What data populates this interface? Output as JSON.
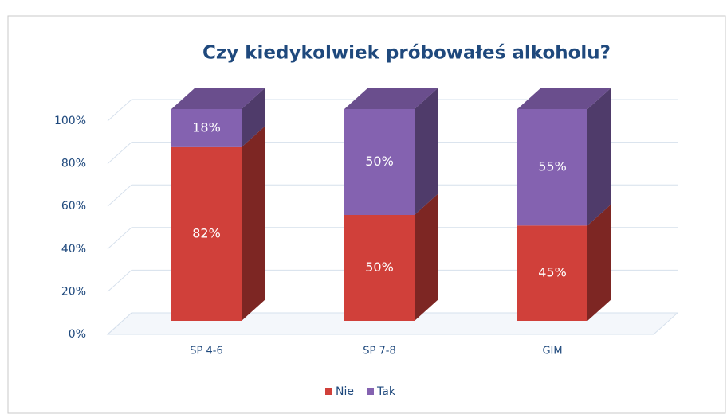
{
  "chart_data": {
    "type": "bar3d_stacked",
    "title": "Czy kiedykolwiek próbowałeś alkoholu?",
    "categories": [
      "SP 4-6",
      "SP 7-8",
      "GIM"
    ],
    "series": [
      {
        "name": "Nie",
        "color": "#d0403a",
        "values": [
          82,
          50,
          45
        ],
        "value_labels": [
          "82%",
          "50%",
          "45%"
        ]
      },
      {
        "name": "Tak",
        "color": "#8462b0",
        "values": [
          18,
          50,
          55
        ],
        "value_labels": [
          "18%",
          "50%",
          "55%"
        ]
      }
    ],
    "ylim": [
      0,
      100
    ],
    "yticks": [
      {
        "value": 0,
        "label": "0%"
      },
      {
        "value": 20,
        "label": "20%"
      },
      {
        "value": 40,
        "label": "40%"
      },
      {
        "value": 60,
        "label": "60%"
      },
      {
        "value": 80,
        "label": "80%"
      },
      {
        "value": 100,
        "label": "100%"
      }
    ],
    "grid": true,
    "legend": "bottom"
  }
}
